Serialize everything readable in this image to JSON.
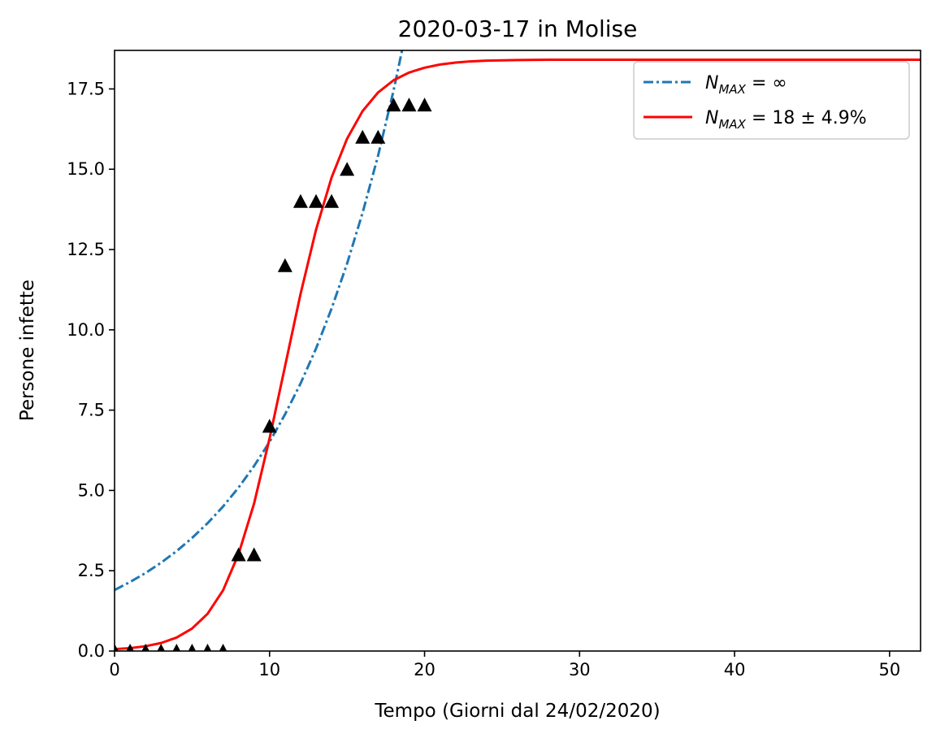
{
  "chart_data": {
    "type": "line",
    "title": "2020-03-17 in Molise",
    "xlabel": "Tempo (Giorni dal 24/02/2020)",
    "ylabel": "Persone infette",
    "xlim": [
      0,
      52
    ],
    "ylim": [
      0,
      18.7
    ],
    "x_ticks": [
      0,
      10,
      20,
      30,
      40,
      50
    ],
    "x_tick_labels": [
      "0",
      "10",
      "20",
      "30",
      "40",
      "50"
    ],
    "y_ticks": [
      0,
      2.5,
      5,
      7.5,
      10,
      12.5,
      15,
      17.5
    ],
    "y_tick_labels": [
      "0.0",
      "2.5",
      "5.0",
      "7.5",
      "10.0",
      "12.5",
      "15.0",
      "17.5"
    ],
    "grid": false,
    "legend": {
      "placement": "upper right",
      "entries": [
        {
          "series": "exponential",
          "label_math": {
            "base": "N",
            "sub": "MAX",
            "rest": " = ∞"
          }
        },
        {
          "series": "logistic",
          "label_math": {
            "base": "N",
            "sub": "MAX",
            "rest": " = 18 ± 4.9%"
          }
        }
      ]
    },
    "observed": {
      "marker": "triangle",
      "color": "#000000",
      "x": [
        0,
        1,
        2,
        3,
        4,
        5,
        6,
        7,
        8,
        9,
        10,
        11,
        12,
        13,
        14,
        15,
        16,
        17,
        18,
        19,
        20
      ],
      "y": [
        0,
        0,
        0,
        0,
        0,
        0,
        0,
        0,
        3,
        3,
        7,
        12,
        14,
        14,
        14,
        15,
        16,
        16,
        17,
        17,
        17
      ]
    },
    "series": [
      {
        "id": "exponential",
        "style": "dashdot",
        "color": "#1f77b4",
        "x": [
          0,
          1,
          2,
          3,
          4,
          5,
          6,
          7,
          8,
          9,
          10,
          11,
          12,
          13,
          14,
          15,
          16,
          17,
          18,
          19,
          19.4
        ],
        "y": [
          1.9,
          2.15,
          2.43,
          2.75,
          3.11,
          3.52,
          3.98,
          4.5,
          5.09,
          5.76,
          6.51,
          7.37,
          8.33,
          9.42,
          10.66,
          12.06,
          13.64,
          15.42,
          17.45,
          19.73,
          20.7
        ]
      },
      {
        "id": "logistic",
        "style": "solid",
        "color": "#ff0000",
        "x": [
          0,
          1,
          2,
          3,
          4,
          5,
          6,
          7,
          8,
          9,
          10,
          11,
          12,
          13,
          14,
          15,
          16,
          17,
          18,
          19,
          20,
          21,
          22,
          23,
          24,
          25,
          26,
          28,
          30,
          35,
          40,
          45,
          50,
          52
        ],
        "y": [
          0.06,
          0.09,
          0.15,
          0.25,
          0.42,
          0.7,
          1.16,
          1.89,
          3.02,
          4.59,
          6.62,
          8.87,
          11.12,
          13.12,
          14.74,
          15.95,
          16.81,
          17.39,
          17.77,
          18.01,
          18.16,
          18.26,
          18.32,
          18.36,
          18.38,
          18.39,
          18.4,
          18.41,
          18.41,
          18.41,
          18.41,
          18.41,
          18.41,
          18.41
        ]
      }
    ]
  }
}
